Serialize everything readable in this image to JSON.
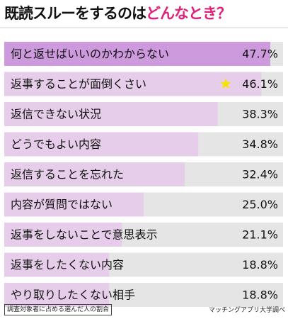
{
  "title": {
    "part1": "既読スルーをするのは",
    "part2": "どんなとき？"
  },
  "footnote": "調査対象者に占める選んだ人の割合",
  "source": "マッチングアプリ大学調べ",
  "colors": {
    "title_accent": "#e0217a",
    "bar_highlight": "#cc9add",
    "bar": "#e6cde9",
    "track": "#e5e5e5",
    "star": "#f8e000"
  },
  "chart_data": {
    "type": "bar",
    "orientation": "horizontal",
    "categories": [
      "何と返せばいいのかわからない",
      "返事することが面倒くさい",
      "返信できない状況",
      "どうでもよい内容",
      "返信することを忘れた",
      "内容が質問ではない",
      "返事をしないことで意思表示",
      "返事をしたくない内容",
      "やり取りしたくない相手"
    ],
    "values": [
      47.7,
      46.1,
      38.3,
      34.8,
      32.4,
      25.0,
      21.1,
      18.8,
      18.8
    ],
    "value_labels": [
      "47.7%",
      "46.1%",
      "38.3%",
      "34.8%",
      "32.4%",
      "25.0%",
      "21.1%",
      "18.8%",
      "18.8%"
    ],
    "xlim": [
      0,
      50
    ],
    "highlight_index": 0,
    "star_index": 1,
    "star_icon": "star-icon"
  }
}
